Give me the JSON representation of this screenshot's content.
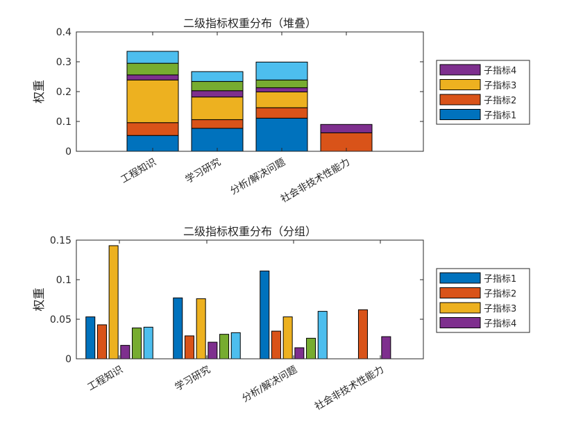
{
  "chart_data": [
    {
      "type": "bar",
      "stacked": true,
      "title": "二级指标权重分布（堆叠）",
      "ylabel": "权重",
      "xlabel": "",
      "ylim": [
        0,
        0.4
      ],
      "yticks": [
        "0",
        "0.1",
        "0.2",
        "0.3",
        "0.4"
      ],
      "categories": [
        "工程知识",
        "学习研究",
        "分析/解决问题",
        "社会非技术性能力"
      ],
      "series": [
        {
          "values": [
            0.053,
            0.077,
            0.111,
            0
          ],
          "color": "#0072BD"
        },
        {
          "values": [
            0.043,
            0.029,
            0.035,
            0.062
          ],
          "color": "#D95319"
        },
        {
          "values": [
            0.143,
            0.076,
            0.053,
            0
          ],
          "color": "#EDB120"
        },
        {
          "values": [
            0.017,
            0.021,
            0.014,
            0.028
          ],
          "color": "#7E2F8E"
        },
        {
          "values": [
            0.039,
            0.031,
            0.026,
            0
          ],
          "color": "#77AC30"
        },
        {
          "values": [
            0.04,
            0.033,
            0.06,
            0
          ],
          "color": "#4DBEEE"
        }
      ],
      "legend": {
        "position": "right",
        "entries": [
          {
            "label": "子指标4",
            "color": "#7E2F8E"
          },
          {
            "label": "子指标3",
            "color": "#EDB120"
          },
          {
            "label": "子指标2",
            "color": "#D95319"
          },
          {
            "label": "子指标1",
            "color": "#0072BD"
          }
        ]
      }
    },
    {
      "type": "bar",
      "stacked": false,
      "title": "二级指标权重分布（分组）",
      "ylabel": "权重",
      "xlabel": "",
      "ylim": [
        0,
        0.15
      ],
      "yticks": [
        "0",
        "0.05",
        "0.1",
        "0.15"
      ],
      "categories": [
        "工程知识",
        "学习研究",
        "分析/解决问题",
        "社会非技术性能力"
      ],
      "series": [
        {
          "values": [
            0.053,
            0.077,
            0.111,
            0
          ],
          "color": "#0072BD"
        },
        {
          "values": [
            0.043,
            0.029,
            0.035,
            0.062
          ],
          "color": "#D95319"
        },
        {
          "values": [
            0.143,
            0.076,
            0.053,
            0
          ],
          "color": "#EDB120"
        },
        {
          "values": [
            0.017,
            0.021,
            0.014,
            0.028
          ],
          "color": "#7E2F8E"
        },
        {
          "values": [
            0.039,
            0.031,
            0.026,
            0
          ],
          "color": "#77AC30"
        },
        {
          "values": [
            0.04,
            0.033,
            0.06,
            0
          ],
          "color": "#4DBEEE"
        }
      ],
      "legend": {
        "position": "right",
        "entries": [
          {
            "label": "子指标1",
            "color": "#0072BD"
          },
          {
            "label": "子指标2",
            "color": "#D95319"
          },
          {
            "label": "子指标3",
            "color": "#EDB120"
          },
          {
            "label": "子指标4",
            "color": "#7E2F8E"
          }
        ]
      }
    }
  ]
}
